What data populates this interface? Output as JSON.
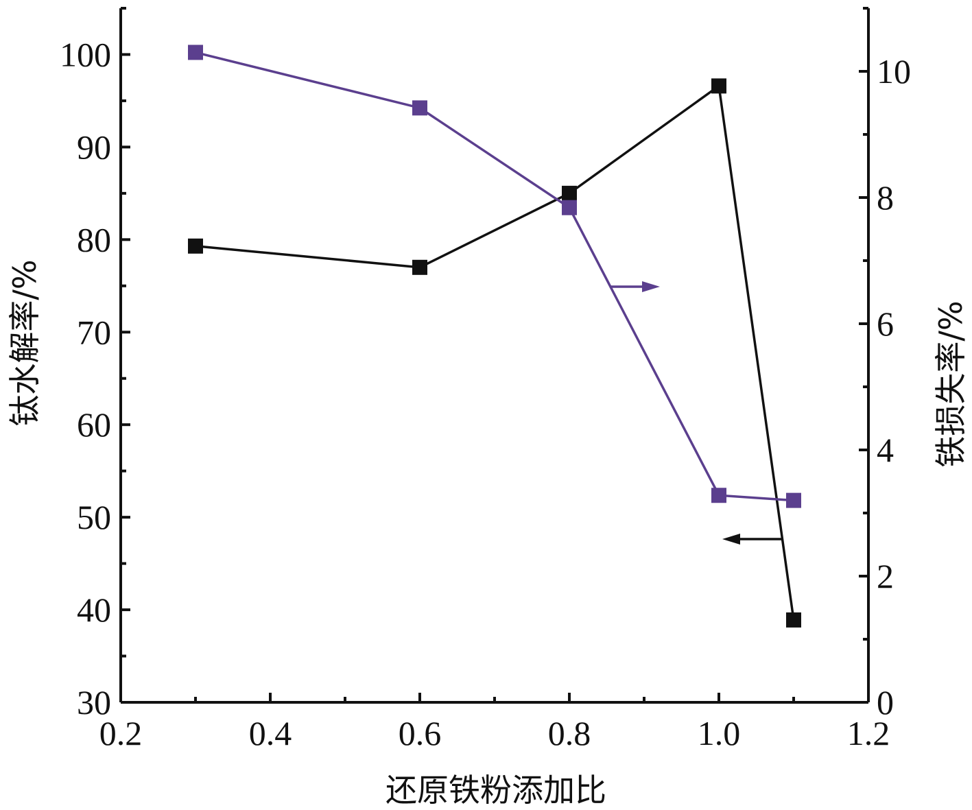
{
  "chart_data": {
    "type": "line",
    "title": "",
    "xlabel": "还原铁粉添加比",
    "ylabel_left": "钛水解率/%",
    "ylabel_right": "铁损失率/%",
    "xlim": [
      0.2,
      1.2
    ],
    "ylim_left": [
      30,
      105
    ],
    "ylim_right": [
      0,
      11
    ],
    "x_ticks": [
      "0.2",
      "0.4",
      "0.6",
      "0.8",
      "1.0",
      "1.2"
    ],
    "y_ticks_left": [
      "30",
      "40",
      "50",
      "60",
      "70",
      "80",
      "90",
      "100"
    ],
    "y_ticks_right": [
      "0",
      "2",
      "4",
      "6",
      "8",
      "10"
    ],
    "grid": false,
    "series": [
      {
        "axis": "left",
        "color": "#111111",
        "marker": "square",
        "x": [
          0.3,
          0.6,
          0.8,
          1.0,
          1.1
        ],
        "y": [
          79.3,
          77.0,
          85.0,
          96.6,
          38.9
        ]
      },
      {
        "axis": "right",
        "color": "#5b3f8e",
        "marker": "square",
        "x": [
          0.3,
          0.6,
          0.8,
          1.0,
          1.1
        ],
        "y": [
          10.3,
          9.42,
          7.84,
          3.28,
          3.2
        ]
      }
    ],
    "annotations": [
      {
        "type": "arrow",
        "direction": "right",
        "points_to": "right axis",
        "series": 1
      },
      {
        "type": "arrow",
        "direction": "left",
        "points_to": "left axis",
        "series": 0
      }
    ]
  }
}
